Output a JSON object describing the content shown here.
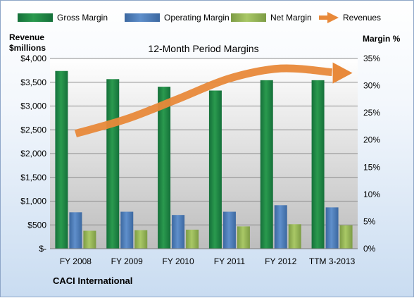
{
  "chart_data": {
    "type": "bar",
    "title": "12-Month Period Margins",
    "company": "CACI International",
    "y_left_label": [
      "Revenue",
      "$millions"
    ],
    "y_right_label": "Margin %",
    "categories": [
      "FY 2008",
      "FY 2009",
      "FY 2010",
      "FY 2011",
      "FY 2012",
      "TTM 3-2013"
    ],
    "y_left_ticks": [
      "$-",
      "$500",
      "$1,000",
      "$1,500",
      "$2,000",
      "$2,500",
      "$3,000",
      "$3,500",
      "$4,000"
    ],
    "y_right_ticks": [
      "0%",
      "5%",
      "10%",
      "15%",
      "20%",
      "25%",
      "30%",
      "35%"
    ],
    "ylim_left": [
      0,
      4000
    ],
    "ylim_right": [
      0,
      35
    ],
    "series": [
      {
        "name": "Gross Margin",
        "color": "#1f8a3f",
        "values": [
          32.7,
          31.2,
          29.8,
          29.1,
          31.0,
          31.0
        ]
      },
      {
        "name": "Operating Margin",
        "color": "#4f81bd",
        "values": [
          6.7,
          6.8,
          6.2,
          6.8,
          8.0,
          7.6
        ]
      },
      {
        "name": "Net Margin",
        "color": "#9bbb59",
        "values": [
          3.3,
          3.4,
          3.5,
          4.1,
          4.5,
          4.3
        ]
      }
    ],
    "revenues": {
      "name": "Revenues",
      "color": "#e8893a",
      "values": [
        2420,
        2730,
        3150,
        3580,
        3790,
        3710
      ]
    },
    "grid": true
  }
}
